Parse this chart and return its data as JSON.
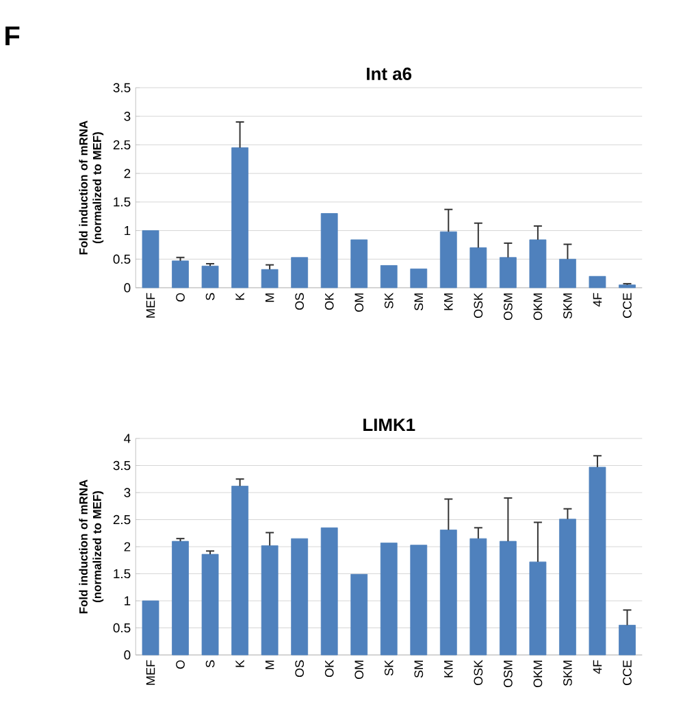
{
  "chart_data": [
    {
      "type": "bar",
      "title": "Int a6",
      "ylabel": "Fold induction of  mRNA (normalized to MEF)",
      "annotations": [
        "F"
      ],
      "categories": [
        "MEF",
        "O",
        "S",
        "K",
        "M",
        "OS",
        "OK",
        "OM",
        "SK",
        "SM",
        "KM",
        "OSK",
        "OSM",
        "OKM",
        "SKM",
        "4F",
        "CCE"
      ],
      "values": [
        1.0,
        0.47,
        0.38,
        2.45,
        0.32,
        0.53,
        1.3,
        0.84,
        0.39,
        0.33,
        0.98,
        0.7,
        0.53,
        0.84,
        0.5,
        0.2,
        0.05
      ],
      "errors": [
        null,
        [
          0.47,
          0.53
        ],
        [
          0.38,
          0.42
        ],
        [
          2.45,
          2.9
        ],
        [
          0.32,
          0.4
        ],
        null,
        null,
        null,
        null,
        null,
        [
          0.98,
          1.37
        ],
        [
          0.7,
          1.13
        ],
        [
          0.53,
          0.78
        ],
        [
          0.84,
          1.08
        ],
        [
          0.5,
          0.76
        ],
        null,
        [
          0.05,
          0.07
        ]
      ],
      "color": "#4f81bd",
      "ylim": [
        0,
        3.5
      ],
      "yticks": [
        0,
        0.5,
        1,
        1.5,
        2,
        2.5,
        3,
        3.5
      ],
      "grid": "y"
    },
    {
      "type": "bar",
      "title": "LIMK1",
      "ylabel": "Fold induction of  mRNA (normalized to MEF)",
      "categories": [
        "MEF",
        "O",
        "S",
        "K",
        "M",
        "OS",
        "OK",
        "OM",
        "SK",
        "SM",
        "KM",
        "OSK",
        "OSM",
        "OKM",
        "SKM",
        "4F",
        "CCE"
      ],
      "values": [
        1.0,
        2.1,
        1.86,
        3.12,
        2.02,
        2.15,
        2.35,
        1.49,
        2.07,
        2.03,
        2.31,
        2.15,
        2.1,
        1.72,
        2.51,
        3.47,
        0.55
      ],
      "errors": [
        null,
        [
          2.1,
          2.15
        ],
        [
          1.86,
          1.92
        ],
        [
          3.12,
          3.25
        ],
        [
          2.02,
          2.26
        ],
        null,
        null,
        null,
        null,
        null,
        [
          2.31,
          2.88
        ],
        [
          2.15,
          2.35
        ],
        [
          2.1,
          2.9
        ],
        [
          1.72,
          2.45
        ],
        [
          2.51,
          2.7
        ],
        [
          3.47,
          3.68
        ],
        [
          0.55,
          0.83
        ]
      ],
      "color": "#4f81bd",
      "ylim": [
        0,
        4
      ],
      "yticks": [
        0,
        0.5,
        1,
        1.5,
        2,
        2.5,
        3,
        3.5,
        4
      ],
      "grid": "y"
    }
  ]
}
